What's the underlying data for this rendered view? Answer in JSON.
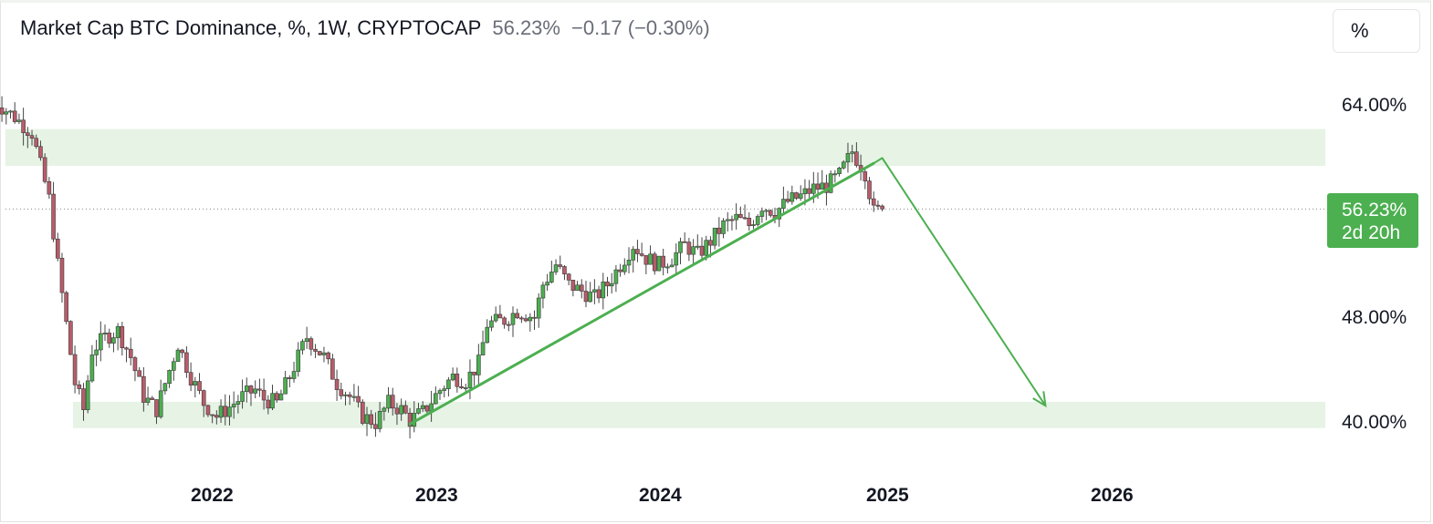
{
  "header": {
    "title": "Market Cap BTC Dominance, %, 1W, CRYPTOCAP",
    "value": "56.23%",
    "change": "−0.17 (−0.30%)"
  },
  "scale_button": "%",
  "price_badge": {
    "value": "56.23%",
    "countdown": "2d 20h",
    "color": "#4caf50"
  },
  "chart_data": {
    "type": "candlestick",
    "title": "Market Cap BTC Dominance, %, 1W, CRYPTOCAP",
    "last_value": 56.23,
    "y_scale": "percent",
    "y_ticks": [
      "64.00%",
      "48.00%",
      "40.00%"
    ],
    "x_ticks": [
      "2022",
      "2023",
      "2024",
      "2025",
      "2026"
    ],
    "colors": {
      "up": "#4caf50",
      "down": "#b85c6a",
      "zone": "#e6f3e5"
    },
    "zones": [
      {
        "from": 59.5,
        "to": 62.3
      },
      {
        "from": 39.6,
        "to": 41.6
      }
    ],
    "trendline": [
      {
        "date": "2022-11-14",
        "value": 39.9
      },
      {
        "date": "2024-12-09",
        "value": 59.7
      }
    ],
    "projection": [
      {
        "date": "2024-12-09",
        "value": 59.7
      },
      {
        "date": "2024-12-23",
        "value": 60.1
      },
      {
        "date": "2025-09-15",
        "value": 41.3
      }
    ],
    "price_path": [
      [
        "2021-01-04",
        64.5
      ],
      [
        "2021-02-08",
        63.2
      ],
      [
        "2021-03-08",
        62.0
      ],
      [
        "2021-04-05",
        57.0
      ],
      [
        "2021-04-19",
        52.0
      ],
      [
        "2021-05-17",
        43.0
      ],
      [
        "2021-05-31",
        41.0
      ],
      [
        "2021-06-14",
        45.5
      ],
      [
        "2021-07-05",
        46.5
      ],
      [
        "2021-07-26",
        47.0
      ],
      [
        "2021-08-16",
        45.0
      ],
      [
        "2021-09-06",
        42.0
      ],
      [
        "2021-09-27",
        41.0
      ],
      [
        "2021-10-18",
        44.0
      ],
      [
        "2021-11-01",
        46.0
      ],
      [
        "2021-11-22",
        43.5
      ],
      [
        "2021-12-13",
        41.5
      ],
      [
        "2022-01-03",
        40.5
      ],
      [
        "2022-01-24",
        41.2
      ],
      [
        "2022-02-14",
        42.0
      ],
      [
        "2022-03-07",
        42.5
      ],
      [
        "2022-03-21",
        41.8
      ],
      [
        "2022-04-11",
        41.5
      ],
      [
        "2022-05-02",
        43.5
      ],
      [
        "2022-05-30",
        46.5
      ],
      [
        "2022-06-27",
        45.0
      ],
      [
        "2022-07-18",
        43.0
      ],
      [
        "2022-08-08",
        42.0
      ],
      [
        "2022-08-29",
        40.5
      ],
      [
        "2022-09-19",
        40.0
      ],
      [
        "2022-10-10",
        41.5
      ],
      [
        "2022-10-31",
        41.0
      ],
      [
        "2022-11-14",
        40.2
      ],
      [
        "2022-12-05",
        40.8
      ],
      [
        "2023-01-02",
        42.5
      ],
      [
        "2023-01-23",
        43.5
      ],
      [
        "2023-02-13",
        43.2
      ],
      [
        "2023-03-06",
        44.5
      ],
      [
        "2023-03-20",
        47.5
      ],
      [
        "2023-04-17",
        47.8
      ],
      [
        "2023-05-08",
        48.5
      ],
      [
        "2023-06-05",
        48.0
      ],
      [
        "2023-06-19",
        50.5
      ],
      [
        "2023-07-10",
        52.0
      ],
      [
        "2023-07-31",
        50.5
      ],
      [
        "2023-08-21",
        50.0
      ],
      [
        "2023-09-11",
        49.5
      ],
      [
        "2023-10-02",
        50.5
      ],
      [
        "2023-10-23",
        52.0
      ],
      [
        "2023-11-13",
        53.5
      ],
      [
        "2023-12-04",
        52.5
      ],
      [
        "2023-12-25",
        52.0
      ],
      [
        "2024-01-15",
        52.5
      ],
      [
        "2024-02-05",
        53.5
      ],
      [
        "2024-02-26",
        52.8
      ],
      [
        "2024-03-18",
        53.8
      ],
      [
        "2024-04-08",
        55.0
      ],
      [
        "2024-04-29",
        55.5
      ],
      [
        "2024-05-20",
        55.0
      ],
      [
        "2024-06-10",
        56.5
      ],
      [
        "2024-07-01",
        56.0
      ],
      [
        "2024-07-22",
        56.8
      ],
      [
        "2024-08-12",
        57.2
      ],
      [
        "2024-09-02",
        57.8
      ],
      [
        "2024-09-23",
        58.0
      ],
      [
        "2024-10-14",
        58.8
      ],
      [
        "2024-11-04",
        60.6
      ],
      [
        "2024-11-25",
        59.0
      ],
      [
        "2024-12-09",
        56.0
      ],
      [
        "2024-12-23",
        56.23
      ]
    ]
  }
}
